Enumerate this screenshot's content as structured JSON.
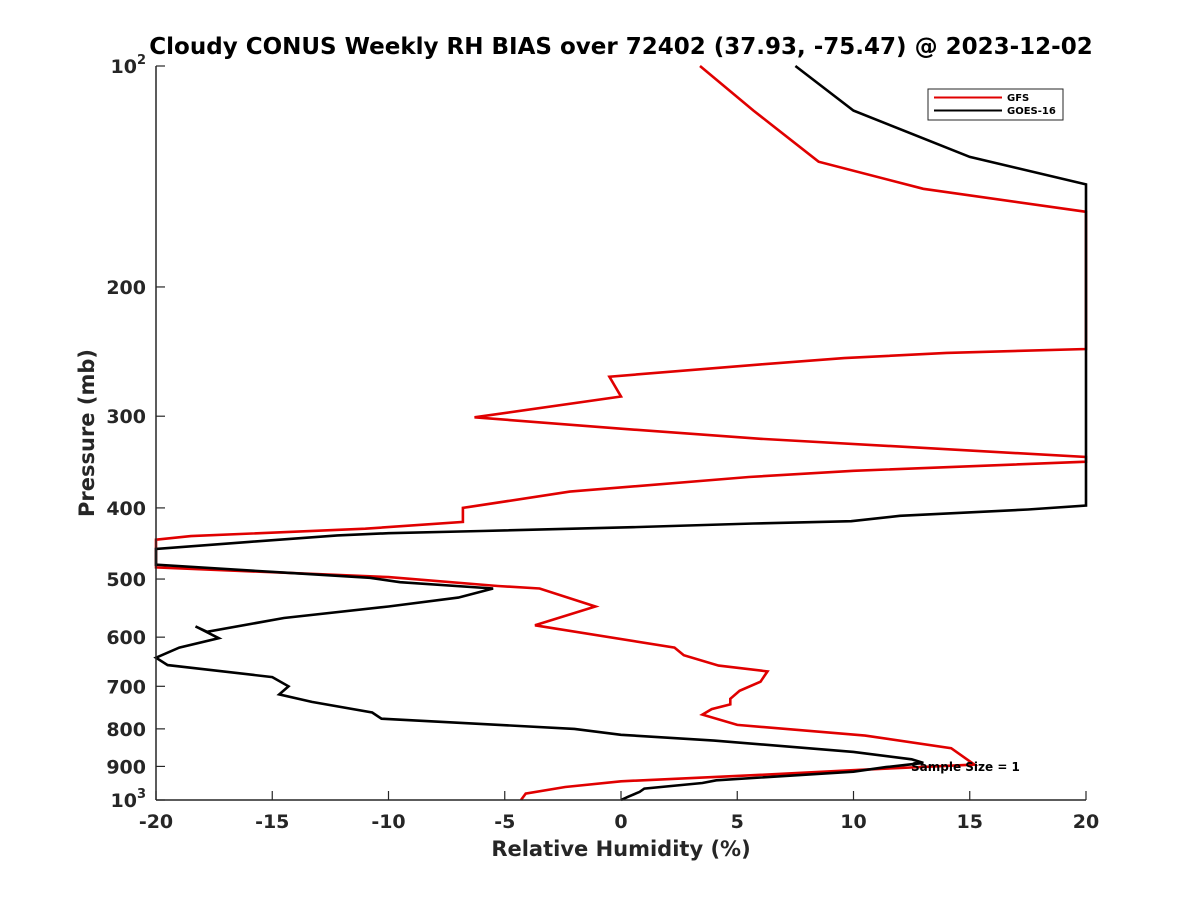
{
  "chart_data": {
    "type": "line",
    "title": "Cloudy CONUS Weekly RH BIAS over 72402 (37.93, -75.47) @ 2023-12-02",
    "xlabel": "Relative Humidity (%)",
    "ylabel": "Pressure (mb)",
    "xlim": [
      -20,
      20
    ],
    "ylim": [
      100,
      1000
    ],
    "yscale": "log",
    "y_reversed": true,
    "grid": false,
    "legend_position": "top-right",
    "xticks": [
      -20,
      -15,
      -10,
      -5,
      0,
      5,
      10,
      15,
      20
    ],
    "xtick_labels": [
      "-20",
      "-15",
      "-10",
      "-5",
      "0",
      "5",
      "10",
      "15",
      "20"
    ],
    "yticks": [
      {
        "value": 100,
        "base": "10",
        "exp": "2",
        "label": ""
      },
      {
        "value": 200,
        "label": "200"
      },
      {
        "value": 300,
        "label": "300"
      },
      {
        "value": 400,
        "label": "400"
      },
      {
        "value": 500,
        "label": "500"
      },
      {
        "value": 600,
        "label": "600"
      },
      {
        "value": 700,
        "label": "700"
      },
      {
        "value": 800,
        "label": "800"
      },
      {
        "value": 900,
        "label": "900"
      },
      {
        "value": 1000,
        "base": "10",
        "exp": "3",
        "label": ""
      }
    ],
    "annotation": "Sample Size = 1",
    "series": [
      {
        "name": "GFS",
        "color": "#e00000",
        "points": [
          [
            3.4,
            100
          ],
          [
            5.7,
            115
          ],
          [
            8.5,
            135
          ],
          [
            13,
            147
          ],
          [
            20,
            158
          ],
          [
            20,
            243
          ],
          [
            14,
            246
          ],
          [
            9.6,
            250
          ],
          [
            6,
            255
          ],
          [
            -0.5,
            265
          ],
          [
            0,
            282
          ],
          [
            -6.3,
            301
          ],
          [
            0,
            312
          ],
          [
            6,
            322
          ],
          [
            20,
            341
          ],
          [
            20,
            346
          ],
          [
            10,
            356
          ],
          [
            5.5,
            363
          ],
          [
            -2.2,
            380
          ],
          [
            -6.8,
            400
          ],
          [
            -6.8,
            418
          ],
          [
            -11,
            427
          ],
          [
            -18.5,
            437
          ],
          [
            -20,
            442
          ],
          [
            -20,
            482
          ],
          [
            -10,
            497
          ],
          [
            -5.3,
            511
          ],
          [
            -3.5,
            515
          ],
          [
            -1.1,
            545
          ],
          [
            -3.7,
            578
          ],
          [
            2.3,
            620
          ],
          [
            2.7,
            635
          ],
          [
            4.2,
            656
          ],
          [
            6.3,
            668
          ],
          [
            6,
            690
          ],
          [
            5.1,
            710
          ],
          [
            4.7,
            728
          ],
          [
            4.7,
            741
          ],
          [
            3.9,
            752
          ],
          [
            3.5,
            765
          ],
          [
            5,
            790
          ],
          [
            10.5,
            817
          ],
          [
            14.2,
            850
          ],
          [
            15.2,
            895
          ],
          [
            10.2,
            910
          ],
          [
            5.8,
            925
          ],
          [
            0,
            943
          ],
          [
            -2.4,
            960
          ],
          [
            -4.1,
            980
          ],
          [
            -4.3,
            1000
          ]
        ]
      },
      {
        "name": "GOES-16",
        "color": "#000000",
        "points": [
          [
            7.5,
            100
          ],
          [
            10,
            115
          ],
          [
            15,
            133
          ],
          [
            20,
            145
          ],
          [
            20,
            397
          ],
          [
            17.5,
            402
          ],
          [
            12,
            410
          ],
          [
            9.9,
            417
          ],
          [
            5.7,
            420
          ],
          [
            0.5,
            425
          ],
          [
            -6,
            430
          ],
          [
            -10,
            433
          ],
          [
            -12.2,
            436
          ],
          [
            -16,
            445
          ],
          [
            -20,
            455
          ],
          [
            -20,
            478
          ],
          [
            -14.5,
            490
          ],
          [
            -10.8,
            498
          ],
          [
            -9.5,
            505
          ],
          [
            -5.5,
            515
          ],
          [
            -7,
            530
          ],
          [
            -10,
            545
          ],
          [
            -14.5,
            565
          ],
          [
            -17.8,
            590
          ],
          [
            -18.3,
            580
          ],
          [
            -17.3,
            602
          ],
          [
            -19,
            620
          ],
          [
            -20,
            640
          ],
          [
            -19.5,
            655
          ],
          [
            -15,
            680
          ],
          [
            -14.3,
            700
          ],
          [
            -14.7,
            718
          ],
          [
            -13.3,
            735
          ],
          [
            -10.7,
            760
          ],
          [
            -10.3,
            775
          ],
          [
            -2,
            800
          ],
          [
            0,
            815
          ],
          [
            4,
            830
          ],
          [
            10,
            860
          ],
          [
            12.5,
            880
          ],
          [
            13,
            890
          ],
          [
            11.4,
            902
          ],
          [
            10,
            915
          ],
          [
            4.1,
            940
          ],
          [
            3.5,
            948
          ],
          [
            1,
            965
          ],
          [
            0.8,
            975
          ],
          [
            0.3,
            990
          ],
          [
            0,
            1000
          ]
        ]
      }
    ]
  }
}
